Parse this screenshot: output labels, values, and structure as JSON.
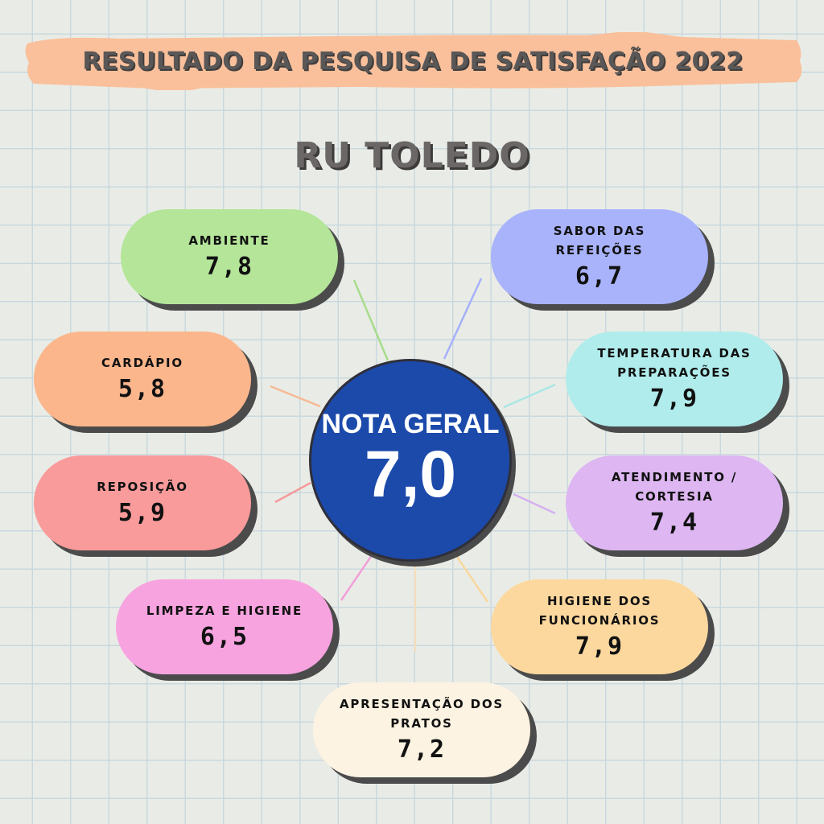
{
  "header": {
    "title": "RESULTADO DA PESQUISA DE SATISFAÇÃO 2022",
    "subtitle": "RU TOLEDO",
    "banner_color": "#f9c09b"
  },
  "overall": {
    "label": "NOTA GERAL",
    "value": "7,0",
    "color": "#1b4aab"
  },
  "categories": [
    {
      "label": "AMBIENTE",
      "value": "7,8",
      "color": "#b4e599"
    },
    {
      "label": "SABOR DAS REFEIÇÕES",
      "value": "6,7",
      "color": "#a9b3fb"
    },
    {
      "label": "CARDÁPIO",
      "value": "5,8",
      "color": "#fbb68c"
    },
    {
      "label": "TEMPERATURA DAS PREPARAÇÕES",
      "value": "7,9",
      "color": "#b1ecec"
    },
    {
      "label": "REPOSIÇÃO",
      "value": "5,9",
      "color": "#f99b9b"
    },
    {
      "label": "ATENDIMENTO / CORTESIA",
      "value": "7,4",
      "color": "#ddb6f2"
    },
    {
      "label": "LIMPEZA E HIGIENE",
      "value": "6,5",
      "color": "#f7a3df"
    },
    {
      "label": "HIGIENE DOS FUNCIONÁRIOS",
      "value": "7,9",
      "color": "#fcd89e"
    },
    {
      "label": "APRESENTAÇÃO DOS PRATOS",
      "value": "7,2",
      "color": "#fdf3e2"
    }
  ]
}
